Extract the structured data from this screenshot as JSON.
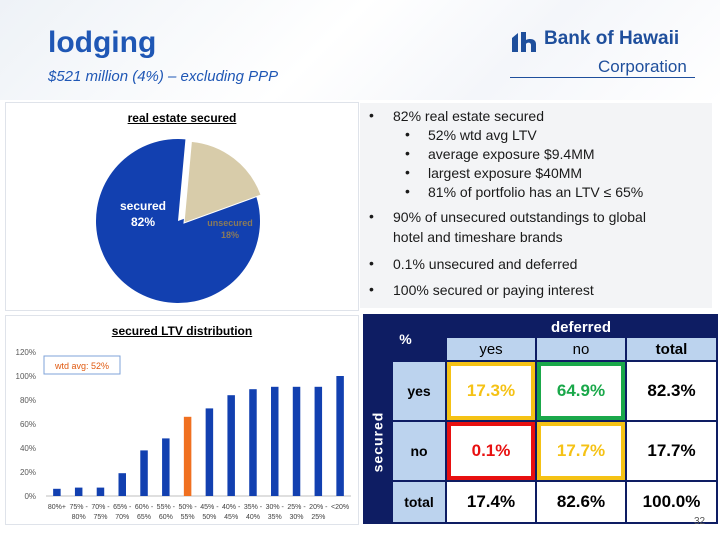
{
  "header": {
    "title": "lodging",
    "subtitle": "$521 million (4%) – excluding PPP"
  },
  "logo": {
    "name": "Bank of Hawaii",
    "corporation": "Corporation"
  },
  "pie_chart": {
    "title": "real estate secured",
    "secured_label": "secured",
    "secured_pct": "82%",
    "unsecured_label": "unsecured",
    "unsecured_pct": "18%"
  },
  "bullets": {
    "b1": "82% real estate secured",
    "b1a": "52% wtd avg LTV",
    "b1b": "average exposure $9.4MM",
    "b1c": "largest exposure $40MM",
    "b1d": "81% of portfolio has an LTV ≤ 65%",
    "b2_line1": "90% of unsecured outstandings to global",
    "b2_line2": "hotel and timeshare brands",
    "b3": "0.1% unsecured and deferred",
    "b4": "100% secured or paying interest"
  },
  "bar_chart": {
    "title": "secured LTV distribution",
    "annotation": "wtd avg: 52%",
    "yticks": [
      "0%",
      "20%",
      "40%",
      "60%",
      "80%",
      "100%",
      "120%"
    ]
  },
  "matrix": {
    "pct_header": "%",
    "deferred_header": "deferred",
    "secured_header": "secured",
    "col_yes": "yes",
    "col_no": "no",
    "col_total": "total",
    "row_yes": "yes",
    "row_no": "no",
    "row_total": "total",
    "yes_yes": "17.3%",
    "yes_no": "64.9%",
    "yes_total": "82.3%",
    "no_yes": "0.1%",
    "no_no": "17.7%",
    "no_total": "17.7%",
    "total_yes": "17.4%",
    "total_no": "82.6%",
    "total_total": "100.0%"
  },
  "page_number": "32",
  "colors": {
    "brand_blue": "#1f57b5",
    "bar_blue": "#1240b0",
    "bar_highlight": "#f07020",
    "pie_secured": "#1240b0",
    "pie_unsecured": "#d8ccaa",
    "matrix_navy": "#0e1d63",
    "matrix_header": "#bcd3ee",
    "border_yellow": "#f5c215",
    "border_green": "#1aa84a",
    "border_red": "#e81010"
  },
  "chart_data": [
    {
      "type": "pie",
      "title": "real estate secured",
      "categories": [
        "secured",
        "unsecured"
      ],
      "values": [
        82,
        18
      ]
    },
    {
      "type": "bar",
      "title": "secured LTV distribution",
      "categories": [
        "80%+",
        "75% - 80%",
        "70% - 75%",
        "65% - 70%",
        "60% - 65%",
        "55% - 60%",
        "50% - 55%",
        "45% - 50%",
        "40% - 45%",
        "35% - 40%",
        "30% - 35%",
        "25% - 30%",
        "20% - 25%",
        "<20%"
      ],
      "cat_line1": [
        "80%+",
        "75% -",
        "70% -",
        "65% -",
        "60% -",
        "55% -",
        "50% -",
        "45% -",
        "40% -",
        "35% -",
        "30% -",
        "25% -",
        "20% -",
        "<20%"
      ],
      "cat_line2": [
        "",
        "80%",
        "75%",
        "70%",
        "65%",
        "60%",
        "55%",
        "50%",
        "45%",
        "40%",
        "35%",
        "30%",
        "25%",
        ""
      ],
      "values": [
        6,
        7,
        7,
        19,
        38,
        48,
        66,
        73,
        84,
        89,
        91,
        91,
        91,
        100
      ],
      "highlight_index": 6,
      "ylim": [
        0,
        120
      ],
      "grid": false
    }
  ]
}
